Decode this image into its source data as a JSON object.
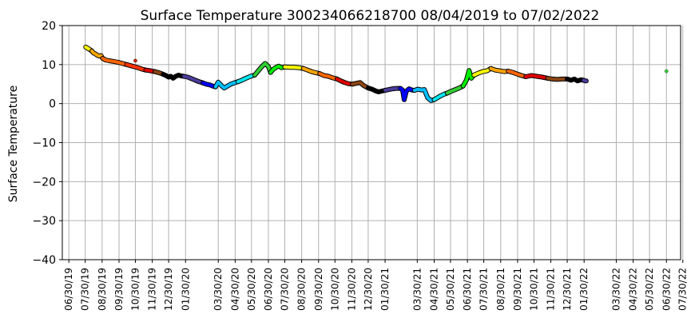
{
  "chart_data": {
    "type": "scatter",
    "title": "Surface Temperature 300234066218700  08/04/2019 to 07/02/2022",
    "xlabel": "",
    "ylabel": "Surface Temperature",
    "ylim": [
      -40,
      20
    ],
    "yticks": [
      -40,
      -30,
      -20,
      -10,
      0,
      10,
      20
    ],
    "xlim": [
      "2019-06-18",
      "2022-07-26"
    ],
    "grid": true,
    "xtick_labels": [
      {
        "date": "2019-06-30",
        "label": "06/30/19"
      },
      {
        "date": "2019-07-30",
        "label": "07/30/19"
      },
      {
        "date": "2019-08-30",
        "label": "08/30/19"
      },
      {
        "date": "2019-09-30",
        "label": "09/30/19"
      },
      {
        "date": "2019-10-30",
        "label": "10/30/19"
      },
      {
        "date": "2019-11-30",
        "label": "11/30/19"
      },
      {
        "date": "2019-12-30",
        "label": "12/30/19"
      },
      {
        "date": "2020-01-30",
        "label": "01/30/20"
      },
      {
        "date": "2020-03-30",
        "label": "03/30/20"
      },
      {
        "date": "2020-04-30",
        "label": "04/30/20"
      },
      {
        "date": "2020-05-30",
        "label": "05/30/20"
      },
      {
        "date": "2020-06-30",
        "label": "06/30/20"
      },
      {
        "date": "2020-07-30",
        "label": "07/30/20"
      },
      {
        "date": "2020-08-30",
        "label": "08/30/20"
      },
      {
        "date": "2020-09-30",
        "label": "09/30/20"
      },
      {
        "date": "2020-10-30",
        "label": "10/30/20"
      },
      {
        "date": "2020-11-30",
        "label": "11/30/20"
      },
      {
        "date": "2020-12-30",
        "label": "12/30/20"
      },
      {
        "date": "2021-01-30",
        "label": "01/30/21"
      },
      {
        "date": "2021-03-30",
        "label": "03/30/21"
      },
      {
        "date": "2021-04-30",
        "label": "04/30/21"
      },
      {
        "date": "2021-05-30",
        "label": "05/30/21"
      },
      {
        "date": "2021-06-30",
        "label": "06/30/21"
      },
      {
        "date": "2021-07-30",
        "label": "07/30/21"
      },
      {
        "date": "2021-08-30",
        "label": "08/30/21"
      },
      {
        "date": "2021-09-30",
        "label": "09/30/21"
      },
      {
        "date": "2021-10-30",
        "label": "10/30/21"
      },
      {
        "date": "2021-11-30",
        "label": "11/30/21"
      },
      {
        "date": "2021-12-30",
        "label": "12/30/21"
      },
      {
        "date": "2022-01-30",
        "label": "01/30/22"
      },
      {
        "date": "2022-03-30",
        "label": "03/30/22"
      },
      {
        "date": "2022-04-30",
        "label": "04/30/22"
      },
      {
        "date": "2022-05-30",
        "label": "05/30/22"
      },
      {
        "date": "2022-06-30",
        "label": "06/30/22"
      },
      {
        "date": "2022-07-30",
        "label": "07/30/22"
      }
    ],
    "series": [
      {
        "color": "#ffff00",
        "points": [
          [
            "2019-07-31",
            14.5
          ],
          [
            "2019-08-03",
            14.2
          ],
          [
            "2019-08-06",
            14.0
          ],
          [
            "2019-08-09",
            13.7
          ],
          [
            "2019-08-11",
            13.5
          ]
        ]
      },
      {
        "color": "#ffa500",
        "points": [
          [
            "2019-08-11",
            13.5
          ],
          [
            "2019-08-14",
            13.0
          ],
          [
            "2019-08-17",
            12.8
          ],
          [
            "2019-08-20",
            12.5
          ],
          [
            "2019-08-24",
            12.2
          ],
          [
            "2019-08-28",
            12.3
          ],
          [
            "2019-08-31",
            11.6
          ]
        ]
      },
      {
        "color": "#ff6600",
        "points": [
          [
            "2019-08-31",
            11.6
          ],
          [
            "2019-09-05",
            11.2
          ],
          [
            "2019-09-12",
            11.0
          ],
          [
            "2019-09-20",
            10.8
          ],
          [
            "2019-09-28",
            10.6
          ],
          [
            "2019-10-06",
            10.3
          ],
          [
            "2019-10-14",
            10.0
          ]
        ]
      },
      {
        "color": "#ff3300",
        "points": [
          [
            "2019-10-14",
            10.0
          ],
          [
            "2019-10-22",
            9.7
          ],
          [
            "2019-10-30",
            9.4
          ],
          [
            "2019-11-06",
            9.1
          ],
          [
            "2019-11-12",
            8.8
          ],
          [
            "2019-11-18",
            8.6
          ]
        ]
      },
      {
        "color": "#e00000",
        "points": [
          [
            "2019-11-18",
            8.6
          ],
          [
            "2019-11-24",
            8.5
          ],
          [
            "2019-11-30",
            8.3
          ],
          [
            "2019-12-05",
            8.2
          ]
        ]
      },
      {
        "color": "#8b4513",
        "points": [
          [
            "2019-12-05",
            8.2
          ],
          [
            "2019-12-10",
            8.0
          ],
          [
            "2019-12-15",
            7.8
          ],
          [
            "2019-12-20",
            7.5
          ]
        ]
      },
      {
        "color": "#000000",
        "points": [
          [
            "2019-12-20",
            7.5
          ],
          [
            "2019-12-25",
            7.2
          ],
          [
            "2019-12-30",
            6.8
          ],
          [
            "2020-01-03",
            7.0
          ],
          [
            "2020-01-07",
            6.5
          ],
          [
            "2020-01-12",
            7.0
          ],
          [
            "2020-01-17",
            7.3
          ],
          [
            "2020-01-22",
            7.1
          ],
          [
            "2020-01-27",
            7.0
          ]
        ]
      },
      {
        "color": "#4b3c9a",
        "points": [
          [
            "2020-01-27",
            7.0
          ],
          [
            "2020-02-03",
            6.8
          ],
          [
            "2020-02-10",
            6.4
          ],
          [
            "2020-02-17",
            6.0
          ],
          [
            "2020-02-24",
            5.6
          ],
          [
            "2020-03-02",
            5.3
          ]
        ]
      },
      {
        "color": "#0000ff",
        "points": [
          [
            "2020-03-02",
            5.3
          ],
          [
            "2020-03-08",
            5.0
          ],
          [
            "2020-03-14",
            4.8
          ],
          [
            "2020-03-20",
            4.5
          ],
          [
            "2020-03-25",
            4.3
          ]
        ]
      },
      {
        "color": "#00bfff",
        "points": [
          [
            "2020-03-25",
            4.3
          ],
          [
            "2020-03-30",
            5.5
          ],
          [
            "2020-04-05",
            4.6
          ],
          [
            "2020-04-10",
            4.0
          ],
          [
            "2020-04-16",
            4.5
          ],
          [
            "2020-04-22",
            5.0
          ],
          [
            "2020-04-28",
            5.3
          ],
          [
            "2020-05-05",
            5.6
          ]
        ]
      },
      {
        "color": "#00e5ee",
        "points": [
          [
            "2020-05-05",
            5.6
          ],
          [
            "2020-05-12",
            6.0
          ],
          [
            "2020-05-20",
            6.5
          ],
          [
            "2020-05-28",
            7.0
          ],
          [
            "2020-06-05",
            7.3
          ]
        ]
      },
      {
        "color": "#32cd32",
        "points": [
          [
            "2020-06-05",
            7.3
          ],
          [
            "2020-06-12",
            8.5
          ],
          [
            "2020-06-18",
            9.5
          ],
          [
            "2020-06-24",
            10.3
          ],
          [
            "2020-06-30",
            9.5
          ],
          [
            "2020-07-04",
            8.0
          ]
        ]
      },
      {
        "color": "#00ee00",
        "points": [
          [
            "2020-07-04",
            8.0
          ],
          [
            "2020-07-09",
            8.8
          ],
          [
            "2020-07-14",
            9.3
          ],
          [
            "2020-07-19",
            9.6
          ],
          [
            "2020-07-24",
            9.2
          ],
          [
            "2020-07-30",
            9.4
          ]
        ]
      },
      {
        "color": "#ffff00",
        "points": [
          [
            "2020-07-30",
            9.4
          ],
          [
            "2020-08-08",
            9.3
          ],
          [
            "2020-08-16",
            9.3
          ],
          [
            "2020-08-25",
            9.2
          ],
          [
            "2020-09-02",
            9.0
          ]
        ]
      },
      {
        "color": "#ffa500",
        "points": [
          [
            "2020-09-02",
            9.0
          ],
          [
            "2020-09-10",
            8.6
          ],
          [
            "2020-09-17",
            8.2
          ],
          [
            "2020-09-25",
            7.9
          ],
          [
            "2020-10-02",
            7.7
          ]
        ]
      },
      {
        "color": "#ff6600",
        "points": [
          [
            "2020-10-02",
            7.7
          ],
          [
            "2020-10-10",
            7.2
          ],
          [
            "2020-10-18",
            7.0
          ],
          [
            "2020-10-26",
            6.6
          ],
          [
            "2020-11-03",
            6.3
          ]
        ]
      },
      {
        "color": "#e00000",
        "points": [
          [
            "2020-11-03",
            6.3
          ],
          [
            "2020-11-10",
            5.8
          ],
          [
            "2020-11-17",
            5.4
          ],
          [
            "2020-11-24",
            5.1
          ],
          [
            "2020-12-01",
            5.0
          ]
        ]
      },
      {
        "color": "#8b4513",
        "points": [
          [
            "2020-12-01",
            5.0
          ],
          [
            "2020-12-08",
            5.2
          ],
          [
            "2020-12-15",
            5.4
          ],
          [
            "2020-12-22",
            4.6
          ],
          [
            "2020-12-30",
            4.0
          ]
        ]
      },
      {
        "color": "#000000",
        "points": [
          [
            "2020-12-30",
            4.0
          ],
          [
            "2021-01-06",
            3.7
          ],
          [
            "2021-01-12",
            3.3
          ],
          [
            "2021-01-18",
            3.0
          ],
          [
            "2021-01-24",
            3.2
          ],
          [
            "2021-01-30",
            3.4
          ]
        ]
      },
      {
        "color": "#4b3c9a",
        "points": [
          [
            "2021-01-30",
            3.4
          ],
          [
            "2021-02-06",
            3.6
          ],
          [
            "2021-02-13",
            3.8
          ],
          [
            "2021-02-20",
            3.9
          ],
          [
            "2021-02-27",
            3.9
          ]
        ]
      },
      {
        "color": "#0000ff",
        "points": [
          [
            "2021-02-27",
            3.9
          ],
          [
            "2021-03-03",
            3.5
          ],
          [
            "2021-03-06",
            1.0
          ],
          [
            "2021-03-10",
            3.2
          ],
          [
            "2021-03-15",
            3.8
          ],
          [
            "2021-03-20",
            3.5
          ],
          [
            "2021-03-25",
            3.4
          ]
        ]
      },
      {
        "color": "#00bfff",
        "points": [
          [
            "2021-03-25",
            3.4
          ],
          [
            "2021-03-31",
            3.7
          ],
          [
            "2021-04-06",
            3.5
          ],
          [
            "2021-04-12",
            3.6
          ],
          [
            "2021-04-18",
            1.5
          ],
          [
            "2021-04-24",
            0.8
          ],
          [
            "2021-04-30",
            1.0
          ]
        ]
      },
      {
        "color": "#00e5ee",
        "points": [
          [
            "2021-04-30",
            1.0
          ],
          [
            "2021-05-06",
            1.5
          ],
          [
            "2021-05-12",
            2.0
          ],
          [
            "2021-05-18",
            2.4
          ],
          [
            "2021-05-24",
            2.7
          ]
        ]
      },
      {
        "color": "#32cd32",
        "points": [
          [
            "2021-05-24",
            2.7
          ],
          [
            "2021-06-01",
            3.2
          ],
          [
            "2021-06-08",
            3.6
          ],
          [
            "2021-06-15",
            4.0
          ],
          [
            "2021-06-22",
            4.5
          ]
        ]
      },
      {
        "color": "#00ee00",
        "points": [
          [
            "2021-06-22",
            4.5
          ],
          [
            "2021-06-28",
            6.0
          ],
          [
            "2021-07-03",
            8.5
          ],
          [
            "2021-07-07",
            6.5
          ],
          [
            "2021-07-12",
            7.3
          ]
        ]
      },
      {
        "color": "#ffff00",
        "points": [
          [
            "2021-07-12",
            7.3
          ],
          [
            "2021-07-20",
            7.8
          ],
          [
            "2021-07-28",
            8.2
          ],
          [
            "2021-08-05",
            8.4
          ],
          [
            "2021-08-12",
            9.0
          ]
        ]
      },
      {
        "color": "#ffa500",
        "points": [
          [
            "2021-08-12",
            9.0
          ],
          [
            "2021-08-20",
            8.6
          ],
          [
            "2021-08-28",
            8.4
          ],
          [
            "2021-09-05",
            8.2
          ],
          [
            "2021-09-13",
            8.3
          ]
        ]
      },
      {
        "color": "#ff6600",
        "points": [
          [
            "2021-09-13",
            8.3
          ],
          [
            "2021-09-21",
            8.0
          ],
          [
            "2021-09-29",
            7.6
          ],
          [
            "2021-10-07",
            7.2
          ],
          [
            "2021-10-15",
            6.9
          ]
        ]
      },
      {
        "color": "#e00000",
        "points": [
          [
            "2021-10-15",
            6.9
          ],
          [
            "2021-10-25",
            7.2
          ],
          [
            "2021-11-04",
            7.0
          ],
          [
            "2021-11-14",
            6.8
          ],
          [
            "2021-11-24",
            6.5
          ]
        ]
      },
      {
        "color": "#8b4513",
        "points": [
          [
            "2021-11-24",
            6.5
          ],
          [
            "2021-12-03",
            6.3
          ],
          [
            "2021-12-12",
            6.2
          ],
          [
            "2021-12-21",
            6.3
          ],
          [
            "2021-12-30",
            6.3
          ]
        ]
      },
      {
        "color": "#000000",
        "points": [
          [
            "2021-12-30",
            6.3
          ],
          [
            "2022-01-06",
            6.0
          ],
          [
            "2022-01-12",
            6.3
          ],
          [
            "2022-01-18",
            5.8
          ],
          [
            "2022-01-24",
            6.1
          ],
          [
            "2022-01-29",
            6.0
          ]
        ]
      },
      {
        "color": "#4b3c9a",
        "points": [
          [
            "2022-01-29",
            6.0
          ],
          [
            "2022-02-01",
            5.8
          ],
          [
            "2022-02-03",
            5.8
          ]
        ]
      }
    ],
    "outliers": [
      {
        "date": "2019-10-30",
        "value": 11.0,
        "color": "#cc2200"
      },
      {
        "date": "2022-06-30",
        "value": 8.3,
        "color": "#32cd32"
      }
    ]
  }
}
